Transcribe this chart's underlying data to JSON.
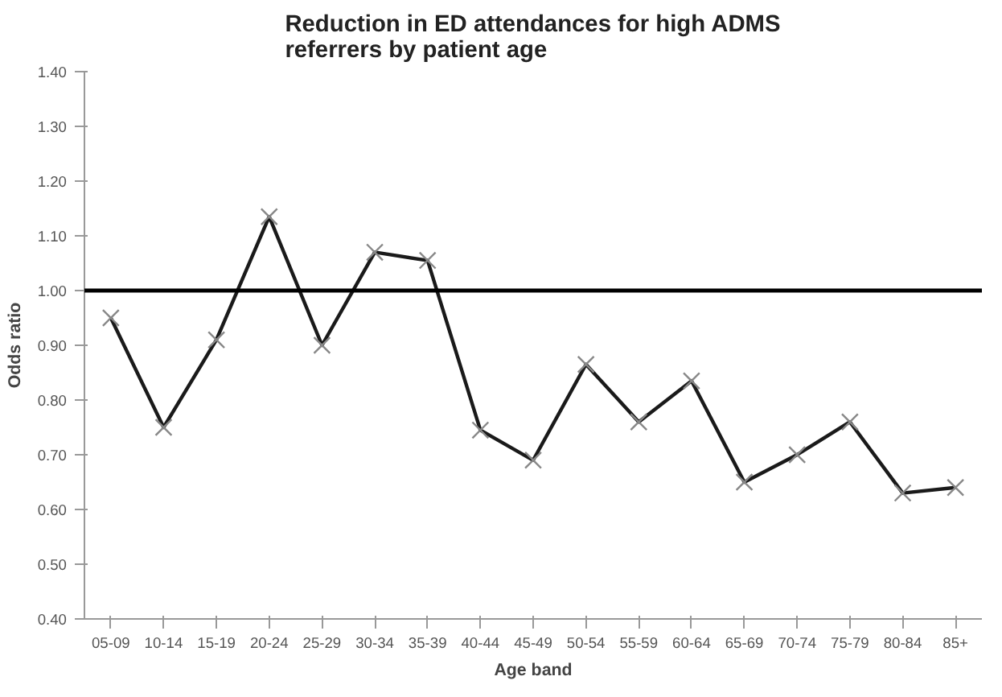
{
  "chart_data": {
    "type": "line",
    "title": "Reduction in ED attendances for high ADMS referrers by patient age",
    "xlabel": "Age band",
    "ylabel": "Odds ratio",
    "categories": [
      "05-09",
      "10-14",
      "15-19",
      "20-24",
      "25-29",
      "30-34",
      "35-39",
      "40-44",
      "45-49",
      "50-54",
      "55-59",
      "60-64",
      "65-69",
      "70-74",
      "75-79",
      "80-84",
      "85+"
    ],
    "series": [
      {
        "color": "#1a1a1a",
        "values": [
          0.95,
          0.75,
          0.91,
          1.135,
          0.9,
          1.07,
          1.055,
          0.745,
          0.69,
          0.865,
          0.76,
          0.835,
          0.65,
          0.7,
          0.76,
          0.63,
          0.64
        ]
      }
    ],
    "ylim": [
      0.4,
      1.4
    ],
    "yticks": [
      {
        "value": 0.4,
        "label": "0.40"
      },
      {
        "value": 0.5,
        "label": "0.50"
      },
      {
        "value": 0.6,
        "label": "0.60"
      },
      {
        "value": 0.7,
        "label": "0.70"
      },
      {
        "value": 0.8,
        "label": "0.80"
      },
      {
        "value": 0.9,
        "label": "0.90"
      },
      {
        "value": 1.0,
        "label": "1.00"
      },
      {
        "value": 1.1,
        "label": "1.10"
      },
      {
        "value": 1.2,
        "label": "1.20"
      },
      {
        "value": 1.3,
        "label": "1.30"
      },
      {
        "value": 1.4,
        "label": "1.40"
      }
    ],
    "ref_lines": [
      {
        "axis": "y",
        "value": 1.0,
        "color": "#000000",
        "line_style": "solid"
      }
    ],
    "marker": "cross",
    "line_style": "solid",
    "grid": false
  }
}
